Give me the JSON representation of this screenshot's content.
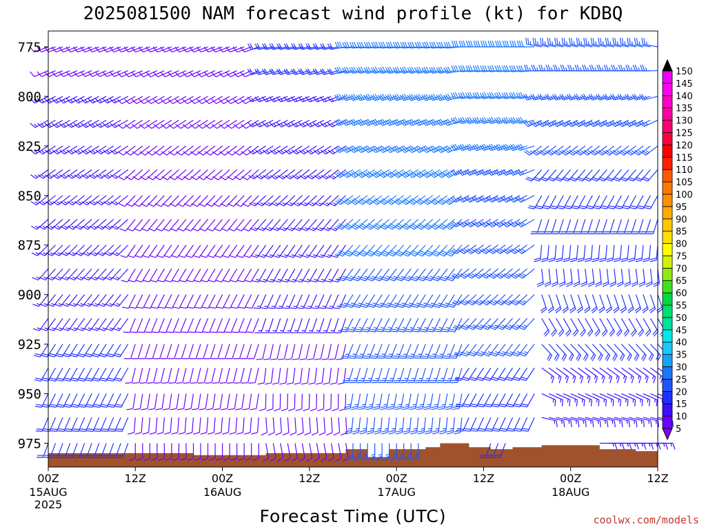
{
  "title": "2025081500 NAM forecast wind profile (kt) for KDBQ",
  "credit": "coolwx.com/models",
  "chart_data": {
    "type": "wind-barb-timeheight",
    "title": "2025081500 NAM forecast wind profile (kt) for KDBQ",
    "xlabel": "Forecast Time (UTC)",
    "ylabel": "",
    "y_ticks": [
      775,
      800,
      825,
      850,
      875,
      900,
      925,
      950,
      975
    ],
    "ylim": [
      767,
      987
    ],
    "xlim_hours": [
      0,
      84
    ],
    "x_ticks": [
      {
        "hour": 0,
        "label": "00Z",
        "date": "15AUG",
        "year": "2025"
      },
      {
        "hour": 12,
        "label": "12Z",
        "date": "",
        "year": ""
      },
      {
        "hour": 24,
        "label": "00Z",
        "date": "16AUG",
        "year": ""
      },
      {
        "hour": 36,
        "label": "12Z",
        "date": "",
        "year": ""
      },
      {
        "hour": 48,
        "label": "00Z",
        "date": "17AUG",
        "year": ""
      },
      {
        "hour": 60,
        "label": "12Z",
        "date": "",
        "year": ""
      },
      {
        "hour": 72,
        "label": "00Z",
        "date": "18AUG",
        "year": ""
      },
      {
        "hour": 84,
        "label": "12Z",
        "date": "",
        "year": ""
      }
    ],
    "colorbar": {
      "values": [
        5,
        10,
        15,
        20,
        25,
        30,
        35,
        40,
        45,
        50,
        55,
        60,
        65,
        70,
        75,
        80,
        85,
        90,
        95,
        100,
        105,
        110,
        115,
        120,
        125,
        130,
        135,
        140,
        145,
        150
      ],
      "colors": [
        "#8000ff",
        "#6a00ff",
        "#3a10ff",
        "#1f2fff",
        "#1f55ff",
        "#1a78ff",
        "#1aa0ff",
        "#18c8ff",
        "#00e8e8",
        "#00e0a0",
        "#00e070",
        "#00d840",
        "#40e020",
        "#90ec10",
        "#d0f400",
        "#ffff00",
        "#ffe000",
        "#ffc800",
        "#ffaa00",
        "#ff9000",
        "#ff7800",
        "#ff5a00",
        "#ff2000",
        "#ff0000",
        "#ff0040",
        "#ff0070",
        "#ff00a0",
        "#ff00c8",
        "#ff00ee",
        "#ee00ff"
      ]
    },
    "terrain_color": "#a0522d",
    "surface_pressure_hpa": [
      {
        "hour": 0,
        "p": 980
      },
      {
        "hour": 20,
        "p": 981
      },
      {
        "hour": 30,
        "p": 980
      },
      {
        "hour": 41,
        "p": 978
      },
      {
        "hour": 44,
        "p": 982
      },
      {
        "hour": 47,
        "p": 978
      },
      {
        "hour": 52,
        "p": 977
      },
      {
        "hour": 54,
        "p": 975
      },
      {
        "hour": 58,
        "p": 977
      },
      {
        "hour": 61,
        "p": 978
      },
      {
        "hour": 64,
        "p": 977
      },
      {
        "hour": 68,
        "p": 976
      },
      {
        "hour": 72,
        "p": 976
      },
      {
        "hour": 76,
        "p": 978
      },
      {
        "hour": 81,
        "p": 979
      },
      {
        "hour": 84,
        "p": 981
      }
    ],
    "levels_hpa": [
      775,
      787,
      800,
      812,
      825,
      837,
      850,
      862,
      875,
      887,
      900,
      912,
      925,
      937,
      950,
      962,
      975
    ],
    "time_step_hours": 1,
    "wind_regimes": [
      {
        "hours": [
          0,
          12
        ],
        "lower_dir": 200,
        "lower_spd": 20,
        "upper_dir": 250,
        "upper_spd": 12
      },
      {
        "hours": [
          12,
          30
        ],
        "lower_dir": 180,
        "lower_spd": 8,
        "upper_dir": 250,
        "upper_spd": 10
      },
      {
        "hours": [
          30,
          42
        ],
        "lower_dir": 170,
        "lower_spd": 10,
        "upper_dir": 260,
        "upper_spd": 18
      },
      {
        "hours": [
          42,
          58
        ],
        "lower_dir": 180,
        "lower_spd": 25,
        "upper_dir": 265,
        "upper_spd": 30
      },
      {
        "hours": [
          58,
          68
        ],
        "lower_dir": 200,
        "lower_spd": 20,
        "upper_dir": 270,
        "upper_spd": 30
      },
      {
        "hours": [
          68,
          84
        ],
        "lower_dir": 90,
        "lower_spd": 15,
        "upper_dir": 280,
        "upper_spd": 25
      }
    ]
  }
}
